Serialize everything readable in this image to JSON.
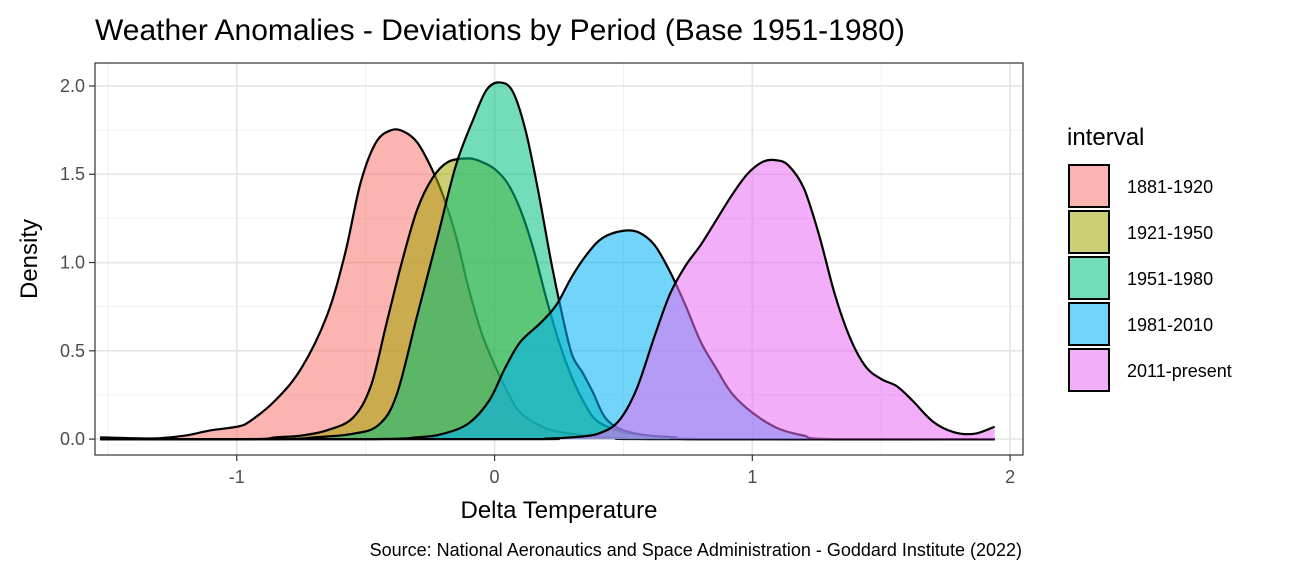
{
  "chart_data": {
    "type": "area",
    "title": "Weather Anomalies - Deviations by Period (Base 1951-1980)",
    "xlabel": "Delta Temperature",
    "ylabel": "Density",
    "caption": "Source: National Aeronautics and Space Administration - Goddard Institute (2022)",
    "xlim": [
      -1.55,
      2.05
    ],
    "ylim": [
      -0.09,
      2.13
    ],
    "x_ticks": [
      -1,
      0,
      1,
      2
    ],
    "x_tick_labels": [
      "-1",
      "0",
      "1",
      "2"
    ],
    "y_ticks": [
      0,
      0.5,
      1,
      1.5,
      2
    ],
    "y_tick_labels": [
      "0.0",
      "0.5",
      "1.0",
      "1.5",
      "2.0"
    ],
    "grid": true,
    "legend": {
      "title": "interval",
      "placement": "right"
    },
    "series": [
      {
        "name": "1881-1920",
        "color": "#F8766D",
        "points": [
          [
            -1.53,
            0.01
          ],
          [
            -1.4,
            0.005
          ],
          [
            -1.3,
            0.005
          ],
          [
            -1.2,
            0.02
          ],
          [
            -1.1,
            0.05
          ],
          [
            -1.0,
            0.07
          ],
          [
            -0.95,
            0.1
          ],
          [
            -0.85,
            0.22
          ],
          [
            -0.75,
            0.4
          ],
          [
            -0.65,
            0.7
          ],
          [
            -0.58,
            1.05
          ],
          [
            -0.52,
            1.45
          ],
          [
            -0.46,
            1.68
          ],
          [
            -0.4,
            1.75
          ],
          [
            -0.35,
            1.74
          ],
          [
            -0.3,
            1.68
          ],
          [
            -0.25,
            1.55
          ],
          [
            -0.2,
            1.38
          ],
          [
            -0.15,
            1.15
          ],
          [
            -0.1,
            0.85
          ],
          [
            -0.05,
            0.6
          ],
          [
            0.0,
            0.42
          ],
          [
            0.05,
            0.27
          ],
          [
            0.1,
            0.15
          ],
          [
            0.2,
            0.06
          ],
          [
            0.3,
            0.03
          ],
          [
            0.4,
            0.015
          ],
          [
            0.5,
            0.005
          ],
          [
            0.6,
            0.0
          ]
        ]
      },
      {
        "name": "1921-1950",
        "color": "#A3A500",
        "points": [
          [
            -0.95,
            0.0
          ],
          [
            -0.85,
            0.01
          ],
          [
            -0.75,
            0.02
          ],
          [
            -0.65,
            0.05
          ],
          [
            -0.55,
            0.12
          ],
          [
            -0.48,
            0.3
          ],
          [
            -0.42,
            0.65
          ],
          [
            -0.36,
            1.0
          ],
          [
            -0.3,
            1.3
          ],
          [
            -0.24,
            1.48
          ],
          [
            -0.18,
            1.57
          ],
          [
            -0.1,
            1.59
          ],
          [
            -0.05,
            1.57
          ],
          [
            0.0,
            1.53
          ],
          [
            0.05,
            1.45
          ],
          [
            0.1,
            1.3
          ],
          [
            0.15,
            1.08
          ],
          [
            0.2,
            0.8
          ],
          [
            0.25,
            0.55
          ],
          [
            0.3,
            0.35
          ],
          [
            0.35,
            0.2
          ],
          [
            0.4,
            0.1
          ],
          [
            0.5,
            0.04
          ],
          [
            0.6,
            0.02
          ],
          [
            0.7,
            0.01
          ],
          [
            0.8,
            0.0
          ]
        ]
      },
      {
        "name": "1951-1980",
        "color": "#00BF7D",
        "points": [
          [
            -0.85,
            0.0
          ],
          [
            -0.7,
            0.01
          ],
          [
            -0.55,
            0.03
          ],
          [
            -0.45,
            0.08
          ],
          [
            -0.38,
            0.25
          ],
          [
            -0.3,
            0.7
          ],
          [
            -0.22,
            1.15
          ],
          [
            -0.15,
            1.55
          ],
          [
            -0.08,
            1.82
          ],
          [
            -0.03,
            1.98
          ],
          [
            0.02,
            2.02
          ],
          [
            0.07,
            1.97
          ],
          [
            0.12,
            1.75
          ],
          [
            0.17,
            1.4
          ],
          [
            0.22,
            1.0
          ],
          [
            0.26,
            0.72
          ],
          [
            0.3,
            0.48
          ],
          [
            0.34,
            0.38
          ],
          [
            0.38,
            0.27
          ],
          [
            0.43,
            0.12
          ],
          [
            0.5,
            0.05
          ],
          [
            0.6,
            0.02
          ],
          [
            0.7,
            0.01
          ],
          [
            0.8,
            0.0
          ]
        ]
      },
      {
        "name": "1981-2010",
        "color": "#00B0F6",
        "points": [
          [
            -0.5,
            0.0
          ],
          [
            -0.3,
            0.01
          ],
          [
            -0.2,
            0.03
          ],
          [
            -0.1,
            0.09
          ],
          [
            -0.02,
            0.22
          ],
          [
            0.04,
            0.4
          ],
          [
            0.1,
            0.55
          ],
          [
            0.18,
            0.66
          ],
          [
            0.24,
            0.76
          ],
          [
            0.3,
            0.92
          ],
          [
            0.36,
            1.05
          ],
          [
            0.42,
            1.14
          ],
          [
            0.5,
            1.18
          ],
          [
            0.56,
            1.17
          ],
          [
            0.62,
            1.1
          ],
          [
            0.68,
            0.95
          ],
          [
            0.74,
            0.76
          ],
          [
            0.8,
            0.55
          ],
          [
            0.86,
            0.4
          ],
          [
            0.92,
            0.26
          ],
          [
            1.0,
            0.15
          ],
          [
            1.1,
            0.06
          ],
          [
            1.2,
            0.02
          ],
          [
            1.3,
            0.0
          ]
        ]
      },
      {
        "name": "2011-present",
        "color": "#E76BF3",
        "points": [
          [
            0.1,
            0.0
          ],
          [
            0.2,
            0.003
          ],
          [
            0.3,
            0.01
          ],
          [
            0.4,
            0.03
          ],
          [
            0.48,
            0.1
          ],
          [
            0.55,
            0.28
          ],
          [
            0.62,
            0.58
          ],
          [
            0.68,
            0.82
          ],
          [
            0.74,
            0.98
          ],
          [
            0.8,
            1.1
          ],
          [
            0.86,
            1.24
          ],
          [
            0.92,
            1.38
          ],
          [
            0.98,
            1.5
          ],
          [
            1.04,
            1.57
          ],
          [
            1.09,
            1.58
          ],
          [
            1.14,
            1.55
          ],
          [
            1.2,
            1.42
          ],
          [
            1.26,
            1.15
          ],
          [
            1.32,
            0.82
          ],
          [
            1.38,
            0.57
          ],
          [
            1.44,
            0.41
          ],
          [
            1.5,
            0.34
          ],
          [
            1.56,
            0.3
          ],
          [
            1.62,
            0.22
          ],
          [
            1.7,
            0.1
          ],
          [
            1.78,
            0.04
          ],
          [
            1.86,
            0.03
          ],
          [
            1.94,
            0.07
          ]
        ]
      }
    ]
  }
}
